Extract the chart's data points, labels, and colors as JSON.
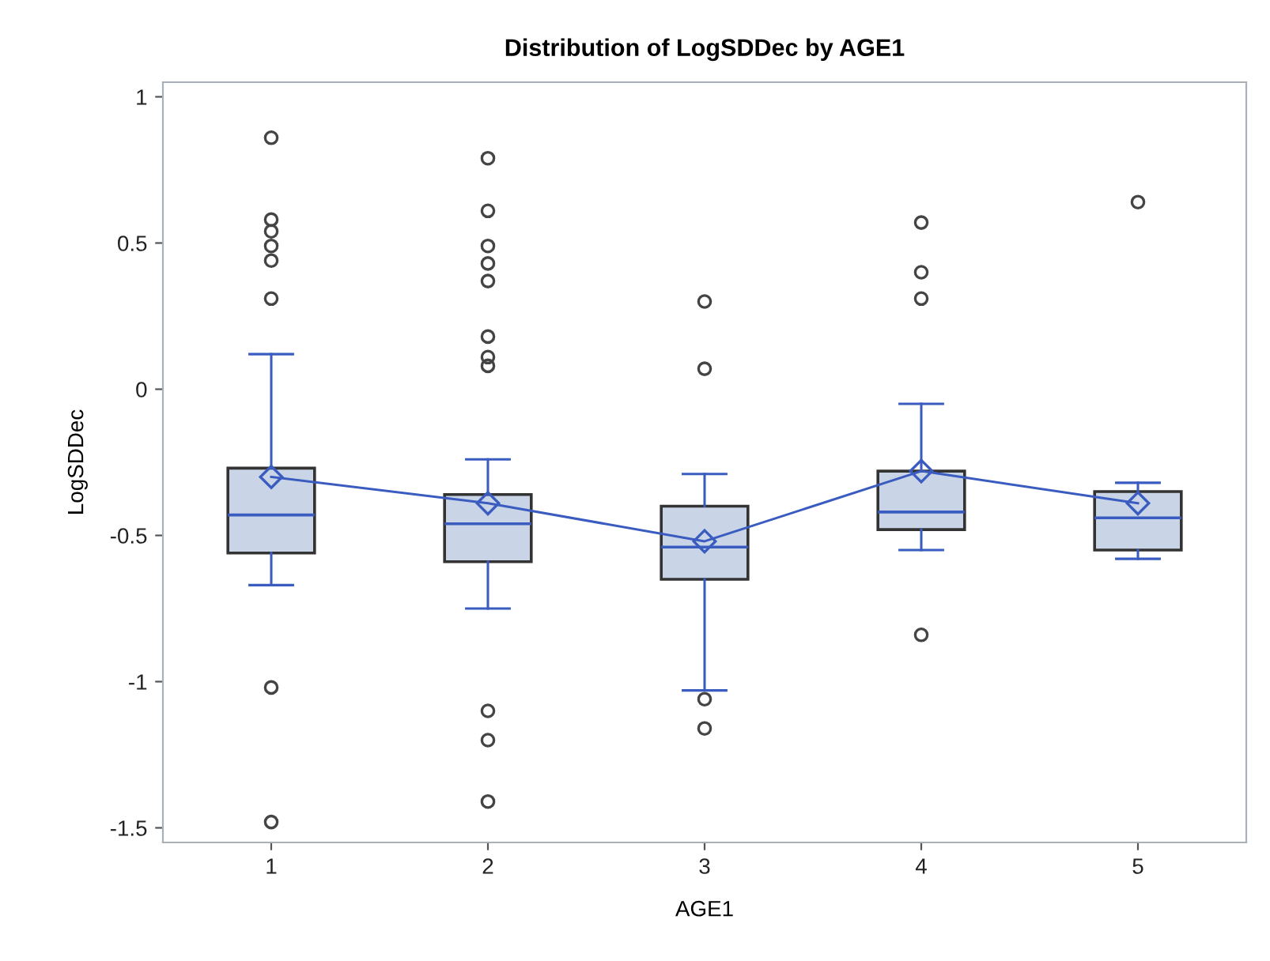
{
  "chart_data": {
    "type": "box",
    "title": "Distribution of LogSDDec by AGE1",
    "xlabel": "AGE1",
    "ylabel": "LogSDDec",
    "categories": [
      "1",
      "2",
      "3",
      "4",
      "5"
    ],
    "boxes": [
      {
        "low": -0.67,
        "q1": -0.56,
        "median": -0.43,
        "q3": -0.27,
        "high": 0.12,
        "mean": -0.3,
        "outliers": [
          0.86,
          0.58,
          0.54,
          0.49,
          0.44,
          0.31,
          -1.02,
          -1.48
        ]
      },
      {
        "low": -0.75,
        "q1": -0.59,
        "median": -0.46,
        "q3": -0.36,
        "high": -0.24,
        "mean": -0.39,
        "outliers": [
          0.79,
          0.61,
          0.49,
          0.43,
          0.37,
          0.18,
          0.11,
          0.08,
          -1.1,
          -1.2,
          -1.41
        ]
      },
      {
        "low": -1.03,
        "q1": -0.65,
        "median": -0.54,
        "q3": -0.4,
        "high": -0.29,
        "mean": -0.52,
        "outliers": [
          0.3,
          0.07,
          -1.06,
          -1.16
        ]
      },
      {
        "low": -0.55,
        "q1": -0.48,
        "median": -0.42,
        "q3": -0.28,
        "high": -0.05,
        "mean": -0.28,
        "outliers": [
          0.57,
          0.4,
          0.31,
          -0.84
        ]
      },
      {
        "low": -0.58,
        "q1": -0.55,
        "median": -0.44,
        "q3": -0.35,
        "high": -0.32,
        "mean": -0.39,
        "outliers": [
          0.64
        ]
      }
    ],
    "colors": [
      "#c9d5e6",
      "#c9d5e6",
      "#c9d5e6",
      "#c9d5e6",
      "#c9d5e6"
    ],
    "series": [
      {
        "type": "line",
        "color": "#3a5cc0",
        "values": [
          -0.3,
          -0.39,
          -0.52,
          -0.28,
          -0.39
        ]
      }
    ],
    "ylim": [
      -1.55,
      1.05
    ],
    "yticks": [
      -1.5,
      -1,
      -0.5,
      0,
      0.5,
      1
    ],
    "grid": false,
    "legend": false
  }
}
